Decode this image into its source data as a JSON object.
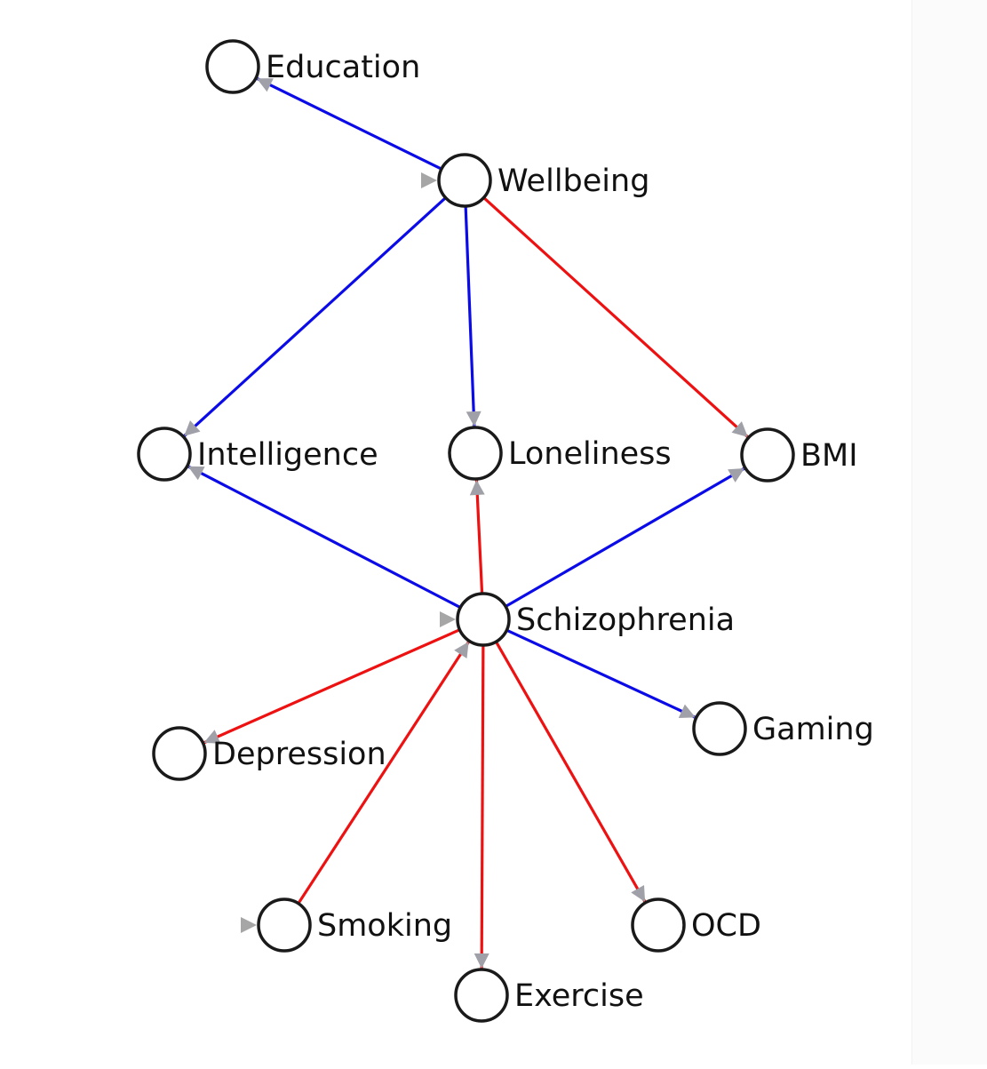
{
  "colors": {
    "positive": "#0b0be8",
    "negative": "#ee1111",
    "arrow": "#a0a0a8",
    "node_stroke": "#1a1a1a"
  },
  "nodes": [
    {
      "id": "education",
      "label": "Education"
    },
    {
      "id": "wellbeing",
      "label": "Wellbeing"
    },
    {
      "id": "intelligence",
      "label": "Intelligence"
    },
    {
      "id": "loneliness",
      "label": "Loneliness"
    },
    {
      "id": "bmi",
      "label": "BMI"
    },
    {
      "id": "schizophrenia",
      "label": "Schizophrenia"
    },
    {
      "id": "depression",
      "label": "Depression"
    },
    {
      "id": "gaming",
      "label": "Gaming"
    },
    {
      "id": "smoking",
      "label": "Smoking"
    },
    {
      "id": "exercise",
      "label": "Exercise"
    },
    {
      "id": "ocd",
      "label": "OCD"
    }
  ],
  "edges": [
    {
      "from": "wellbeing",
      "to": "education",
      "sign": "positive"
    },
    {
      "from": "wellbeing",
      "to": "intelligence",
      "sign": "positive"
    },
    {
      "from": "wellbeing",
      "to": "loneliness",
      "sign": "positive"
    },
    {
      "from": "wellbeing",
      "to": "bmi",
      "sign": "negative"
    },
    {
      "from": "schizophrenia",
      "to": "intelligence",
      "sign": "positive"
    },
    {
      "from": "schizophrenia",
      "to": "loneliness",
      "sign": "negative"
    },
    {
      "from": "schizophrenia",
      "to": "bmi",
      "sign": "positive"
    },
    {
      "from": "schizophrenia",
      "to": "depression",
      "sign": "negative"
    },
    {
      "from": "schizophrenia",
      "to": "gaming",
      "sign": "positive"
    },
    {
      "from": "smoking",
      "to": "schizophrenia",
      "sign": "negative"
    },
    {
      "from": "schizophrenia",
      "to": "exercise",
      "sign": "negative"
    },
    {
      "from": "schizophrenia",
      "to": "ocd",
      "sign": "negative"
    }
  ],
  "input_nodes": [
    "wellbeing",
    "schizophrenia",
    "smoking"
  ]
}
